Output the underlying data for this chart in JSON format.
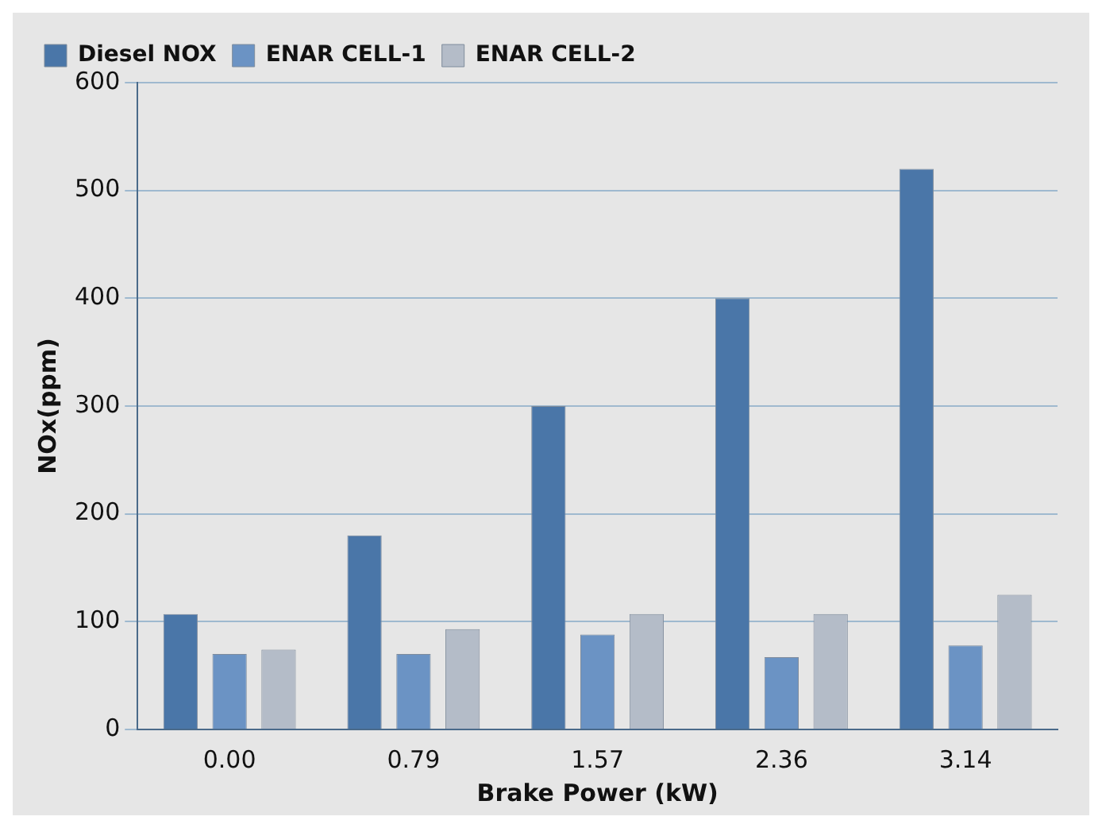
{
  "chart_data": {
    "type": "bar",
    "xlabel": "Brake Power (kW)",
    "ylabel": "NOx(ppm)",
    "categories": [
      "0.00",
      "0.79",
      "1.57",
      "2.36",
      "3.14"
    ],
    "series": [
      {
        "name": "Diesel NOX",
        "color": "#4a76a8",
        "values": [
          107,
          180,
          300,
          400,
          520
        ]
      },
      {
        "name": "ENAR CELL-1",
        "color": "#6b93c4",
        "values": [
          70,
          70,
          88,
          67,
          78
        ]
      },
      {
        "name": "ENAR CELL-2",
        "color": "#b4bcc8",
        "values": [
          74,
          93,
          107,
          107,
          125
        ]
      }
    ],
    "ylim": [
      0,
      600
    ],
    "yticks": [
      0,
      100,
      200,
      300,
      400,
      500,
      600
    ],
    "grid": "y",
    "legend": "top left"
  }
}
